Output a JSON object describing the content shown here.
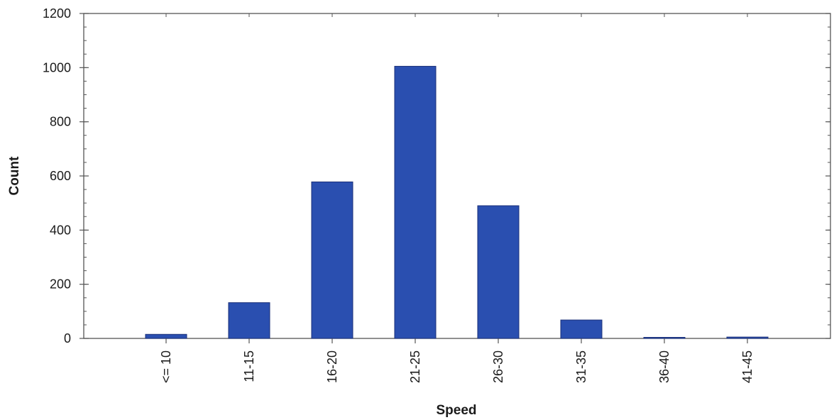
{
  "chart_data": {
    "type": "bar",
    "title": "",
    "xlabel": "Speed",
    "ylabel": "Count",
    "categories": [
      "<= 10",
      "11-15",
      "16-20",
      "21-25",
      "26-30",
      "31-35",
      "36-40",
      "41-45"
    ],
    "values": [
      15,
      132,
      578,
      1005,
      490,
      68,
      3,
      5
    ],
    "ylim": [
      0,
      1200
    ],
    "yticks": [
      0,
      200,
      400,
      600,
      800,
      1000,
      1200
    ],
    "grid": false,
    "legend": "none",
    "bar_color": "#2a4fb0",
    "bar_edge_color": "#1a2f78",
    "axis_color": "#555555"
  }
}
